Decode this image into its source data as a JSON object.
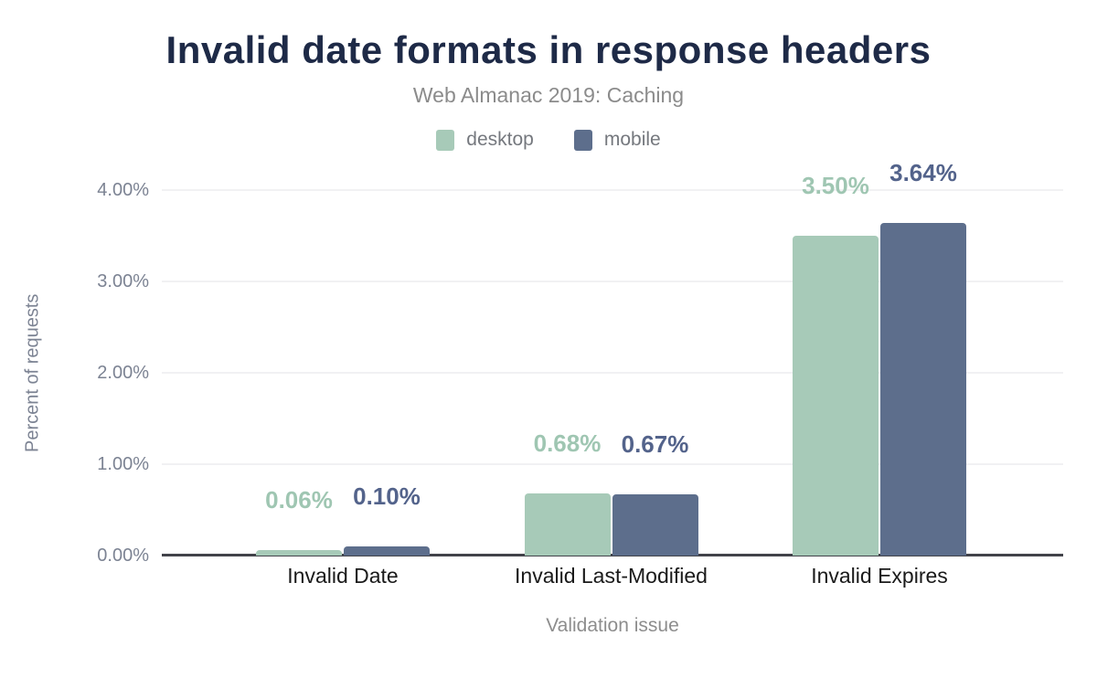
{
  "chart_data": {
    "type": "bar",
    "title": "Invalid date formats in response headers",
    "subtitle": "Web Almanac 2019: Caching",
    "xlabel": "Validation issue",
    "ylabel": "Percent of requests",
    "categories": [
      "Invalid Date",
      "Invalid Last-Modified",
      "Invalid Expires"
    ],
    "series": [
      {
        "name": "desktop",
        "color": "#a7cab8",
        "label_color": "#9fc6b2",
        "values": [
          0.06,
          0.68,
          3.5
        ],
        "labels": [
          "0.06%",
          "0.68%",
          "3.50%"
        ]
      },
      {
        "name": "mobile",
        "color": "#5d6e8c",
        "label_color": "#53638b",
        "values": [
          0.1,
          0.67,
          3.64
        ],
        "labels": [
          "0.10%",
          "0.67%",
          "3.64%"
        ]
      }
    ],
    "ylim": [
      0,
      4
    ],
    "yticks": [
      {
        "value": 0,
        "label": "0.00%"
      },
      {
        "value": 1,
        "label": "1.00%"
      },
      {
        "value": 2,
        "label": "2.00%"
      },
      {
        "value": 3,
        "label": "3.00%"
      },
      {
        "value": 4,
        "label": "4.00%"
      }
    ],
    "grid": true,
    "legend_position": "top"
  },
  "colors": {
    "title": "#1e2a47",
    "subtitle": "#8b8b8b",
    "legend_text": "#75787e",
    "ytick_text": "#7c8393",
    "xtick_text": "#1a1a1a",
    "axis_title": "#8d8d8d",
    "gridline": "#f1f1f3",
    "axis_line": "#42434a",
    "background": "#ffffff"
  }
}
